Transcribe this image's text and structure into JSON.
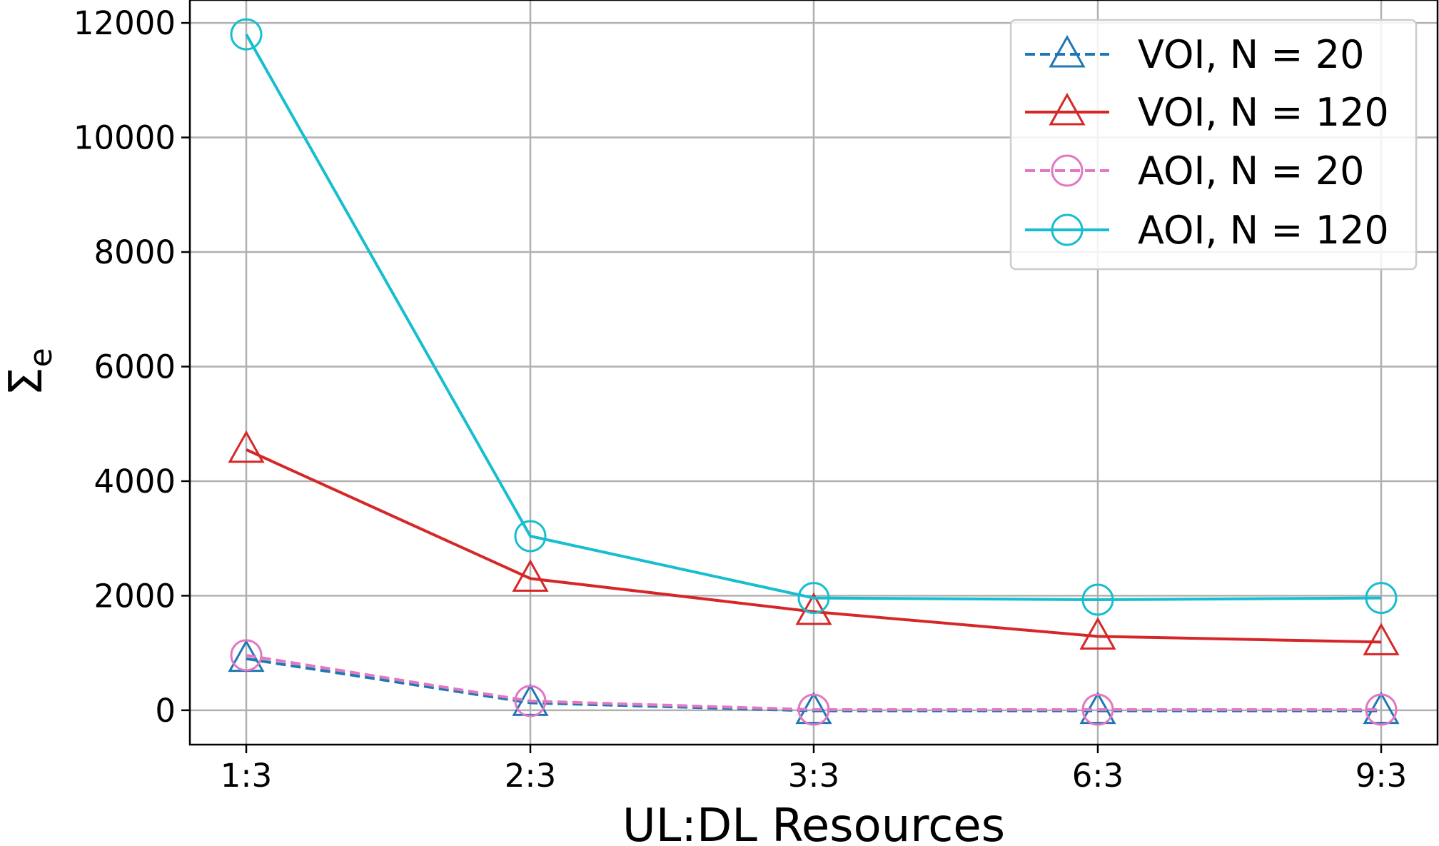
{
  "chart_data": {
    "type": "line",
    "categories": [
      "1:3",
      "2:3",
      "3:3",
      "6:3",
      "9:3"
    ],
    "xlabel": "UL:DL Resources",
    "ylabel": "Σ",
    "ylabel_subscript": "e",
    "ylim": [
      -600,
      12400
    ],
    "yticks": [
      0,
      2000,
      4000,
      6000,
      8000,
      10000,
      12000
    ],
    "grid": true,
    "legend_position": "top-right",
    "series": [
      {
        "name": "VOI, N = 20",
        "color": "#1f77b4",
        "dash": true,
        "marker": "triangle",
        "values": [
          900,
          130,
          -10,
          -10,
          -10
        ]
      },
      {
        "name": "VOI, N = 120",
        "color": "#d62728",
        "dash": false,
        "marker": "triangle",
        "values": [
          4550,
          2300,
          1720,
          1290,
          1190
        ]
      },
      {
        "name": "AOI, N = 20",
        "color": "#e377c2",
        "dash": true,
        "marker": "circle",
        "values": [
          960,
          160,
          10,
          10,
          10
        ]
      },
      {
        "name": "AOI, N = 120",
        "color": "#17becf",
        "dash": false,
        "marker": "circle",
        "values": [
          11800,
          3040,
          1960,
          1930,
          1960
        ]
      }
    ]
  }
}
